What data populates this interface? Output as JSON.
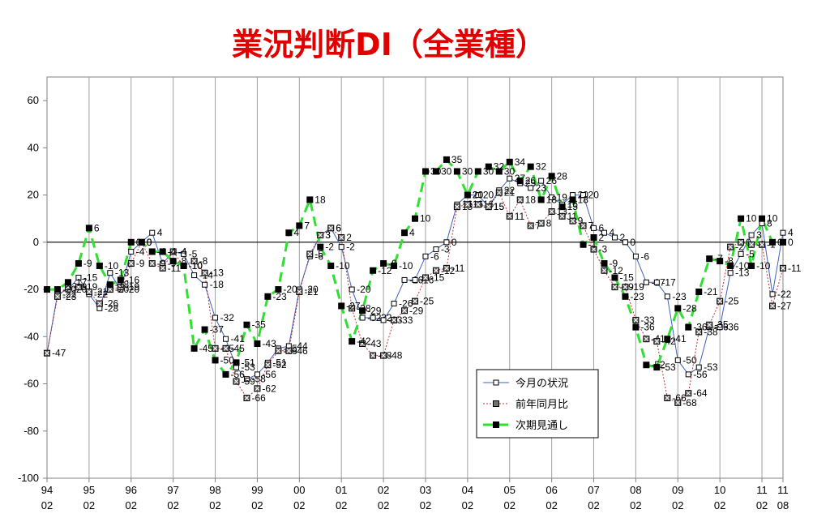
{
  "chart_data": {
    "type": "line",
    "title": "業況判断DI（全業種）",
    "xlabel": "",
    "ylabel": "",
    "ylim": [
      -100,
      70
    ],
    "yticks": [
      60,
      40,
      20,
      0,
      -20,
      -40,
      -60,
      -80,
      -100
    ],
    "grid_vertical": true,
    "legend_position": "bottom-center",
    "x_ticks": [
      {
        "year": "94",
        "month": "02",
        "i": 0
      },
      {
        "year": "95",
        "month": "02",
        "i": 4
      },
      {
        "year": "96",
        "month": "02",
        "i": 8
      },
      {
        "year": "97",
        "month": "02",
        "i": 12
      },
      {
        "year": "98",
        "month": "02",
        "i": 16
      },
      {
        "year": "99",
        "month": "02",
        "i": 20
      },
      {
        "year": "00",
        "month": "02",
        "i": 24
      },
      {
        "year": "01",
        "month": "02",
        "i": 28
      },
      {
        "year": "02",
        "month": "02",
        "i": 32
      },
      {
        "year": "03",
        "month": "02",
        "i": 36
      },
      {
        "year": "04",
        "month": "02",
        "i": 40
      },
      {
        "year": "05",
        "month": "02",
        "i": 44
      },
      {
        "year": "06",
        "month": "02",
        "i": 48
      },
      {
        "year": "07",
        "month": "02",
        "i": 52
      },
      {
        "year": "08",
        "month": "02",
        "i": 56
      },
      {
        "year": "09",
        "month": "02",
        "i": 60
      },
      {
        "year": "10",
        "month": "02",
        "i": 64
      },
      {
        "year": "11",
        "month": "02",
        "i": 68
      },
      {
        "year": "11",
        "month": "08",
        "i": 70
      }
    ],
    "series": [
      {
        "name": "今月の状況",
        "color": "#4060c0",
        "style": "solid-open-square",
        "values": [
          -47,
          -22,
          -20,
          -15,
          -22,
          -28,
          -13,
          -20,
          -4,
          0,
          4,
          -9,
          -4,
          -5,
          -14,
          -18,
          -32,
          -41,
          -53,
          -58,
          -56,
          -51,
          -45,
          -44,
          -20,
          -6,
          3,
          6,
          -2,
          -20,
          -32,
          -32,
          -33,
          -26,
          -16,
          -16,
          -6,
          -3,
          0,
          16,
          20,
          20,
          15,
          22,
          27,
          25,
          23,
          26,
          19,
          16,
          20,
          20,
          6,
          4,
          2,
          0,
          -6,
          -17,
          -17,
          -23,
          -50,
          -56,
          -53,
          -36,
          -36,
          -13,
          -5,
          3,
          8,
          -22,
          4
        ]
      },
      {
        "name": "前年同月比",
        "color": "#c03030",
        "style": "dotted-x-square",
        "values": [
          -47,
          -23,
          -19,
          -19,
          -21,
          -26,
          -20,
          -19,
          -9,
          0,
          -9,
          -11,
          -4,
          -10,
          -8,
          -13,
          -45,
          -45,
          -59,
          -66,
          -62,
          -52,
          -46,
          -46,
          -21,
          -5,
          3,
          6,
          2,
          -28,
          -43,
          -48,
          -48,
          -33,
          -29,
          -25,
          -15,
          -12,
          -11,
          15,
          16,
          16,
          15,
          21,
          11,
          18,
          7,
          8,
          13,
          11,
          9,
          7,
          -3,
          -12,
          -19,
          -19,
          -33,
          -41,
          -42,
          -66,
          -68,
          -64,
          -38,
          -35,
          -25,
          -2,
          0,
          -1,
          -1,
          -27,
          -11
        ]
      },
      {
        "name": "次期見通し",
        "color": "#30e030",
        "style": "dashed-filled-square",
        "values": [
          -20,
          -20,
          -17,
          -9,
          6,
          -10,
          -18,
          -16,
          0,
          0,
          -4,
          -4,
          -8,
          -10,
          -45,
          -37,
          -50,
          -56,
          -51,
          -35,
          -43,
          -23,
          -20,
          4,
          7,
          18,
          -2,
          -10,
          -27,
          -42,
          -29,
          -12,
          -9,
          -10,
          4,
          10,
          30,
          30,
          35,
          30,
          20,
          30,
          32,
          30,
          34,
          26,
          32,
          18,
          28,
          15,
          18,
          -1,
          2,
          -9,
          -15,
          -23,
          -36,
          -52,
          -53,
          -41,
          -28,
          -36,
          -21,
          -7,
          -8,
          -10,
          10,
          -10,
          10,
          0,
          0
        ]
      }
    ]
  }
}
